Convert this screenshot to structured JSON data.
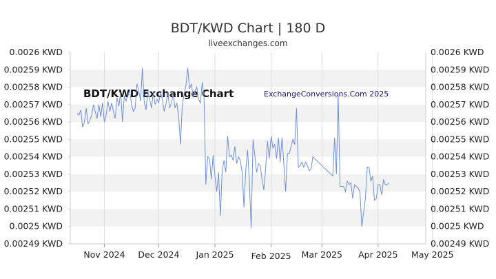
{
  "header": {
    "title": "BDT/KWD Chart | 180 D",
    "source": "liveexchanges.com"
  },
  "watermarks": {
    "left": "BDT/KWD Exchange Chart",
    "right": "ExchangeConversions.Com 2025"
  },
  "chart_data": {
    "type": "line",
    "title": "BDT/KWD Chart | 180 D",
    "xlabel": "",
    "ylabel": "",
    "ylim": [
      0.00249,
      0.0026
    ],
    "y_ticks": [
      {
        "value": 0.0026,
        "label": "0.0026 KWD"
      },
      {
        "value": 0.00259,
        "label": "0.00259 KWD"
      },
      {
        "value": 0.00258,
        "label": "0.00258 KWD"
      },
      {
        "value": 0.00257,
        "label": "0.00257 KWD"
      },
      {
        "value": 0.00256,
        "label": "0.00256 KWD"
      },
      {
        "value": 0.00255,
        "label": "0.00255 KWD"
      },
      {
        "value": 0.00254,
        "label": "0.00254 KWD"
      },
      {
        "value": 0.00253,
        "label": "0.00253 KWD"
      },
      {
        "value": 0.00252,
        "label": "0.00252 KWD"
      },
      {
        "value": 0.00251,
        "label": "0.00251 KWD"
      },
      {
        "value": 0.0025,
        "label": "0.0025 KWD"
      },
      {
        "value": 0.00249,
        "label": "0.00249 KWD"
      }
    ],
    "x_ticks": [
      {
        "day": 15,
        "label": "Nov 2024"
      },
      {
        "day": 45,
        "label": "Dec 2024"
      },
      {
        "day": 76,
        "label": "Jan 2025"
      },
      {
        "day": 107,
        "label": "Feb 2025"
      },
      {
        "day": 135,
        "label": "Mar 2025"
      },
      {
        "day": 166,
        "label": "Apr 2025"
      },
      {
        "day": 196,
        "label": "May 2025"
      }
    ],
    "grid": true,
    "line_color": "#6f8fd8",
    "band_color": "#f2f2f2",
    "series": [
      {
        "values": [
          [
            0,
            0.002565
          ],
          [
            1,
            0.002564
          ],
          [
            2,
            0.002567
          ],
          [
            3,
            0.002557
          ],
          [
            4,
            0.00256
          ],
          [
            5,
            0.002568
          ],
          [
            6,
            0.002559
          ],
          [
            7,
            0.002561
          ],
          [
            8,
            0.002564
          ],
          [
            9,
            0.00257
          ],
          [
            10,
            0.002566
          ],
          [
            11,
            0.002562
          ],
          [
            12,
            0.00257
          ],
          [
            13,
            0.002563
          ],
          [
            14,
            0.002571
          ],
          [
            15,
            0.00256
          ],
          [
            16,
            0.002564
          ],
          [
            17,
            0.002572
          ],
          [
            18,
            0.002566
          ],
          [
            19,
            0.002571
          ],
          [
            20,
            0.002566
          ],
          [
            21,
            0.002562
          ],
          [
            22,
            0.002574
          ],
          [
            23,
            0.002569
          ],
          [
            24,
            0.002577
          ],
          [
            25,
            0.00256
          ],
          [
            26,
            0.002575
          ],
          [
            27,
            0.002572
          ],
          [
            28,
            0.002576
          ],
          [
            29,
            0.002578
          ],
          [
            30,
            0.00257
          ],
          [
            31,
            0.002566
          ],
          [
            32,
            0.002568
          ],
          [
            33,
            0.002582
          ],
          [
            34,
            0.002578
          ],
          [
            35,
            0.002572
          ],
          [
            36,
            0.002591
          ],
          [
            37,
            0.002571
          ],
          [
            38,
            0.002567
          ],
          [
            39,
            0.002578
          ],
          [
            40,
            0.002573
          ],
          [
            41,
            0.002568
          ],
          [
            42,
            0.002577
          ],
          [
            43,
            0.00257
          ],
          [
            44,
            0.002573
          ],
          [
            45,
            0.002571
          ],
          [
            46,
            0.002577
          ],
          [
            47,
            0.002573
          ],
          [
            48,
            0.002566
          ],
          [
            49,
            0.00257
          ],
          [
            50,
            0.002577
          ],
          [
            51,
            0.002568
          ],
          [
            52,
            0.002571
          ],
          [
            53,
            0.002576
          ],
          [
            54,
            0.002568
          ],
          [
            55,
            0.002571
          ],
          [
            56,
            0.002563
          ],
          [
            57,
            0.002547
          ],
          [
            58,
            0.00257
          ],
          [
            59,
            0.002576
          ],
          [
            60,
            0.002581
          ],
          [
            61,
            0.002591
          ],
          [
            62,
            0.002579
          ],
          [
            63,
            0.002582
          ],
          [
            64,
            0.002574
          ],
          [
            65,
            0.002578
          ],
          [
            66,
            0.00258
          ],
          [
            67,
            0.002573
          ],
          [
            68,
            0.002571
          ],
          [
            69,
            0.002583
          ],
          [
            70,
            0.002574
          ],
          [
            71,
            0.002524
          ],
          [
            72,
            0.00254
          ],
          [
            73,
            0.002539
          ],
          [
            74,
            0.002527
          ],
          [
            75,
            0.002541
          ],
          [
            76,
            0.002529
          ],
          [
            77,
            0.00252
          ],
          [
            78,
            0.002531
          ],
          [
            79,
            0.002506
          ],
          [
            80,
            0.002532
          ],
          [
            81,
            0.002538
          ],
          [
            82,
            0.002531
          ],
          [
            83,
            0.002552
          ],
          [
            84,
            0.00254
          ],
          [
            85,
            0.002541
          ],
          [
            86,
            0.002538
          ],
          [
            87,
            0.002546
          ],
          [
            88,
            0.002536
          ],
          [
            89,
            0.00254
          ],
          [
            90,
            0.002538
          ],
          [
            91,
            0.002531
          ],
          [
            92,
            0.002511
          ],
          [
            93,
            0.002532
          ],
          [
            94,
            0.002544
          ],
          [
            95,
            0.002526
          ],
          [
            96,
            0.002499
          ],
          [
            97,
            0.00255
          ],
          [
            98,
            0.002541
          ],
          [
            99,
            0.002531
          ],
          [
            100,
            0.002536
          ],
          [
            101,
            0.002535
          ],
          [
            102,
            0.002527
          ],
          [
            103,
            0.002521
          ],
          [
            104,
            0.002534
          ],
          [
            105,
            0.002549
          ],
          [
            106,
            0.002539
          ],
          [
            107,
            0.002552
          ],
          [
            108,
            0.002545
          ],
          [
            109,
            0.002547
          ],
          [
            110,
            0.002539
          ],
          [
            111,
            0.002551
          ],
          [
            112,
            0.002537
          ],
          [
            113,
            0.002551
          ],
          [
            114,
            0.002536
          ],
          [
            115,
            0.00252
          ],
          [
            116,
            0.002542
          ],
          [
            117,
            0.002542
          ],
          [
            118,
            0.002546
          ],
          [
            119,
            0.00255
          ],
          [
            120,
            0.002547
          ],
          [
            121,
            0.002568
          ],
          [
            122,
            0.002534
          ],
          [
            123,
            0.002535
          ],
          [
            124,
            0.002537
          ],
          [
            125,
            0.002534
          ],
          [
            126,
            0.002537
          ],
          [
            127,
            0.002535
          ],
          [
            128,
            0.002532
          ],
          [
            129,
            0.002533
          ],
          [
            130,
            0.00254
          ],
          [
            131,
            0.002539
          ],
          [
            132,
            0.002538
          ],
          [
            133,
            0.002537
          ],
          [
            134,
            0.002536
          ],
          [
            135,
            0.002535
          ],
          [
            136,
            0.002534
          ],
          [
            137,
            0.002533
          ],
          [
            138,
            0.002532
          ],
          [
            139,
            0.002531
          ],
          [
            140,
            0.00253
          ],
          [
            141,
            0.002529
          ],
          [
            142,
            0.002551
          ],
          [
            143,
            0.00253
          ],
          [
            144,
            0.002576
          ],
          [
            145,
            0.002523
          ],
          [
            146,
            0.002523
          ],
          [
            147,
            0.002523
          ],
          [
            148,
            0.00252
          ],
          [
            149,
            0.002526
          ],
          [
            150,
            0.002524
          ],
          [
            151,
            0.002525
          ],
          [
            152,
            0.002516
          ],
          [
            153,
            0.002524
          ],
          [
            154,
            0.002523
          ],
          [
            155,
            0.002522
          ],
          [
            156,
            0.00252
          ],
          [
            157,
            0.0025
          ],
          [
            158,
            0.002508
          ],
          [
            159,
            0.002516
          ],
          [
            160,
            0.002534
          ],
          [
            161,
            0.002534
          ],
          [
            162,
            0.002526
          ],
          [
            163,
            0.002529
          ],
          [
            164,
            0.002515
          ],
          [
            165,
            0.002516
          ],
          [
            166,
            0.002524
          ],
          [
            167,
            0.002524
          ],
          [
            168,
            0.002518
          ],
          [
            169,
            0.002527
          ],
          [
            170,
            0.002524
          ],
          [
            171,
            0.002524
          ],
          [
            172,
            0.002525
          ]
        ]
      }
    ]
  }
}
